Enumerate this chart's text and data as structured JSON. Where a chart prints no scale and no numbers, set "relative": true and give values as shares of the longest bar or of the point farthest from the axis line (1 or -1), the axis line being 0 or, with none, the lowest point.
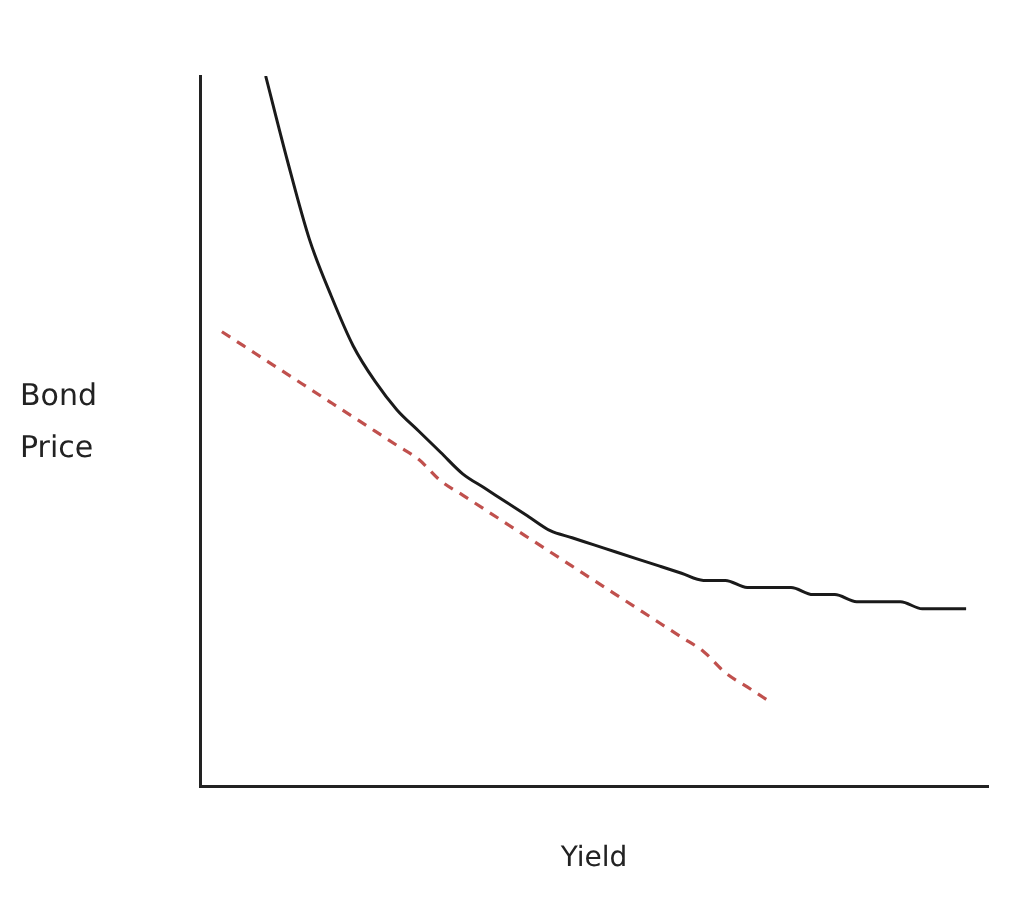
{
  "chart_data": {
    "type": "line",
    "relative": true,
    "xlabel": "Yield",
    "ylabel": "Bond Price",
    "marker": "none",
    "grid": false,
    "legend": false,
    "categories": [
      null,
      null,
      null,
      null,
      null,
      null,
      null,
      null,
      null,
      null,
      null,
      null,
      null,
      null,
      null,
      null,
      null,
      null,
      null,
      null,
      null,
      null,
      null,
      null,
      null,
      null,
      null,
      null,
      null,
      null,
      null,
      null,
      null,
      null,
      null,
      null,
      null
    ],
    "series": [
      {
        "color": "#1a1a1a",
        "line_style": "solid",
        "values": [
          null,
          null,
          null,
          1,
          0.88,
          0.77,
          0.69,
          0.62,
          0.57,
          0.53,
          0.5,
          0.47,
          0.44,
          0.42,
          0.4,
          0.38,
          0.36,
          0.35,
          0.34,
          0.33,
          0.32,
          0.31,
          0.3,
          0.29,
          0.29,
          0.28,
          0.28,
          0.28,
          0.27,
          0.27,
          0.26,
          0.26,
          0.26,
          0.25,
          0.25,
          0.25,
          null
        ]
      },
      {
        "color": "#c0504d",
        "line_style": "dashed",
        "values": [
          null,
          0.64,
          0.62,
          0.6,
          0.58,
          0.56,
          0.54,
          0.52,
          0.5,
          0.48,
          0.46,
          0.43,
          0.41,
          0.39,
          0.37,
          0.35,
          0.33,
          0.31,
          0.29,
          0.27,
          0.25,
          0.23,
          0.21,
          0.19,
          0.16,
          0.14,
          0.12,
          null,
          null,
          null,
          null,
          null,
          null,
          null,
          null,
          null,
          null
        ]
      }
    ]
  }
}
